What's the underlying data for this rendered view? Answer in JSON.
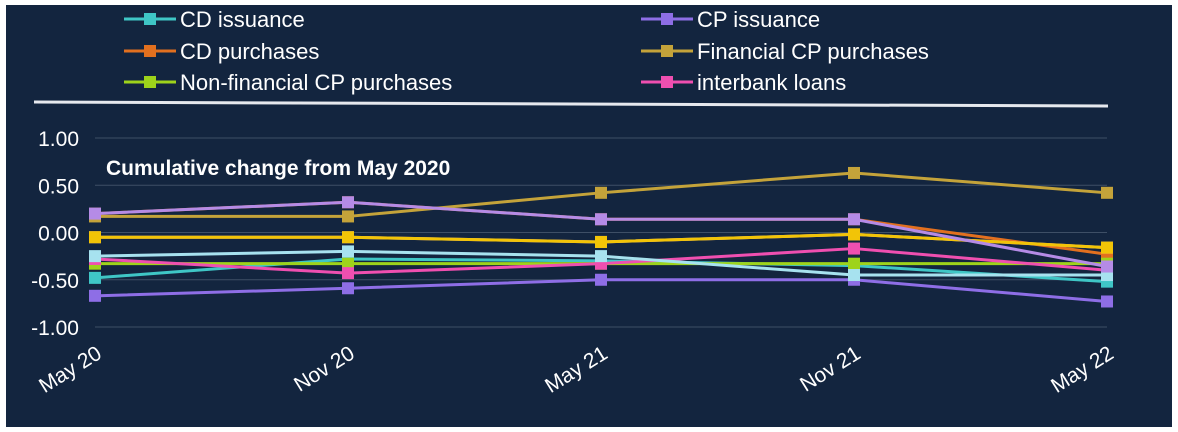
{
  "chart_data": {
    "type": "line",
    "annotation": "Cumulative change from May 2020",
    "categories": [
      "May 20",
      "Nov 20",
      "May 21",
      "Nov 21",
      "May 22"
    ],
    "yticks": [
      "1.00",
      "0.50",
      "0.00",
      "-0.50",
      "-1.00"
    ],
    "ylim": [
      -1.0,
      1.0
    ],
    "grid": true,
    "legend_position": "top",
    "series": [
      {
        "name": "CD issuance",
        "color": "#3fc6c6",
        "values": [
          -0.48,
          -0.28,
          -0.3,
          -0.35,
          -0.52
        ]
      },
      {
        "name": "CP issuance",
        "color": "#8e6ee6",
        "values": [
          -0.67,
          -0.59,
          -0.5,
          -0.5,
          -0.73
        ]
      },
      {
        "name": "CD purchases",
        "color": "#e2701f",
        "values": [
          0.2,
          0.32,
          0.14,
          0.14,
          -0.23
        ]
      },
      {
        "name": "Financial CP purchases",
        "color": "#c4a33a",
        "values": [
          0.17,
          0.17,
          0.42,
          0.63,
          0.42
        ]
      },
      {
        "name": "Non-financial CP purchases",
        "color": "#9ed31b",
        "values": [
          -0.33,
          -0.33,
          -0.33,
          -0.33,
          -0.33
        ]
      },
      {
        "name": "interbank loans",
        "color": "#ef4fb0",
        "values": [
          -0.28,
          -0.43,
          -0.33,
          -0.17,
          -0.4
        ]
      },
      {
        "name": "",
        "color": "#a7e2ef",
        "values": [
          -0.25,
          -0.2,
          -0.25,
          -0.45,
          -0.45
        ]
      },
      {
        "name": "",
        "color": "#f5b6a6",
        "values": [
          -0.05,
          -0.05,
          -0.1,
          -0.02,
          -0.16
        ]
      },
      {
        "name": "",
        "color": "#f2c407",
        "values": [
          -0.05,
          -0.05,
          -0.1,
          -0.02,
          -0.16
        ]
      },
      {
        "name": "",
        "color": "#b58be6",
        "values": [
          0.2,
          0.32,
          0.14,
          0.14,
          -0.36
        ]
      }
    ]
  }
}
